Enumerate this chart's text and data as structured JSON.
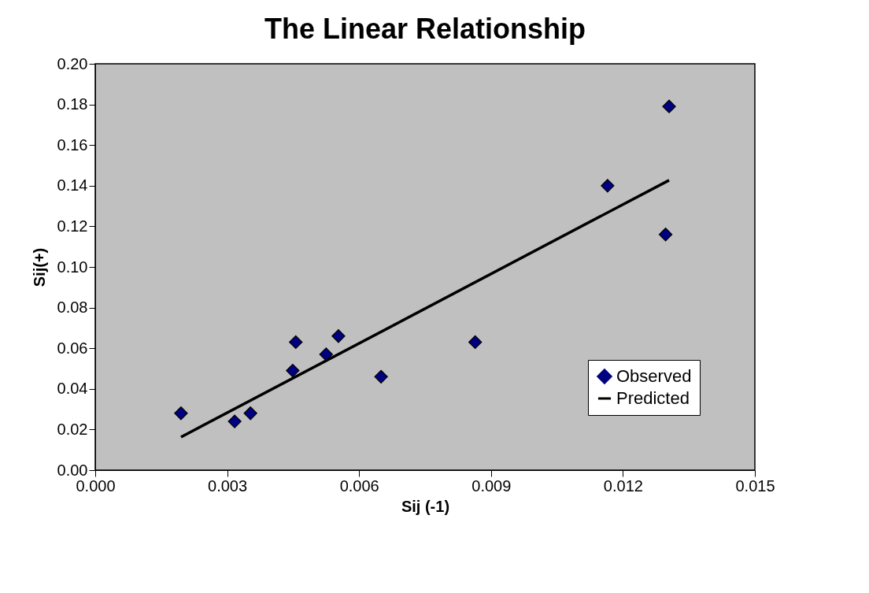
{
  "chart_data": {
    "type": "scatter",
    "title": "The Linear Relationship",
    "xlabel": "Sij (-1)",
    "ylabel": "Sij(+)",
    "series": [
      {
        "name": "Observed",
        "color": "#000080",
        "marker": "diamond",
        "x": [
          0.00195,
          0.00317,
          0.00353,
          0.00449,
          0.00456,
          0.00525,
          0.00553,
          0.0065,
          0.00864,
          0.01165,
          0.01305,
          0.01297
        ],
        "values": [
          0.028,
          0.024,
          0.028,
          0.049,
          0.063,
          0.057,
          0.066,
          0.046,
          0.063,
          0.14,
          0.179,
          0.116
        ]
      },
      {
        "name": "Predicted",
        "type": "line",
        "color": "#000000",
        "line_style": "solid",
        "x": [
          0.00195,
          0.01305
        ],
        "values": [
          0.0163,
          0.1427
        ]
      }
    ],
    "xlim": [
      0,
      0.015
    ],
    "ylim": [
      0,
      0.2
    ],
    "xticks": [
      {
        "value": 0,
        "label": "0.000"
      },
      {
        "value": 0.003,
        "label": "0.003"
      },
      {
        "value": 0.006,
        "label": "0.006"
      },
      {
        "value": 0.009,
        "label": "0.009"
      },
      {
        "value": 0.012,
        "label": "0.012"
      },
      {
        "value": 0.015,
        "label": "0.015"
      }
    ],
    "yticks": [
      {
        "value": 0,
        "label": "0.00"
      },
      {
        "value": 0.02,
        "label": "0.02"
      },
      {
        "value": 0.04,
        "label": "0.04"
      },
      {
        "value": 0.06,
        "label": "0.06"
      },
      {
        "value": 0.08,
        "label": "0.08"
      },
      {
        "value": 0.1,
        "label": "0.10"
      },
      {
        "value": 0.12,
        "label": "0.12"
      },
      {
        "value": 0.14,
        "label": "0.14"
      },
      {
        "value": 0.16,
        "label": "0.16"
      },
      {
        "value": 0.18,
        "label": "0.18"
      },
      {
        "value": 0.2,
        "label": "0.20"
      }
    ],
    "grid": false,
    "legend": "bottom right"
  }
}
